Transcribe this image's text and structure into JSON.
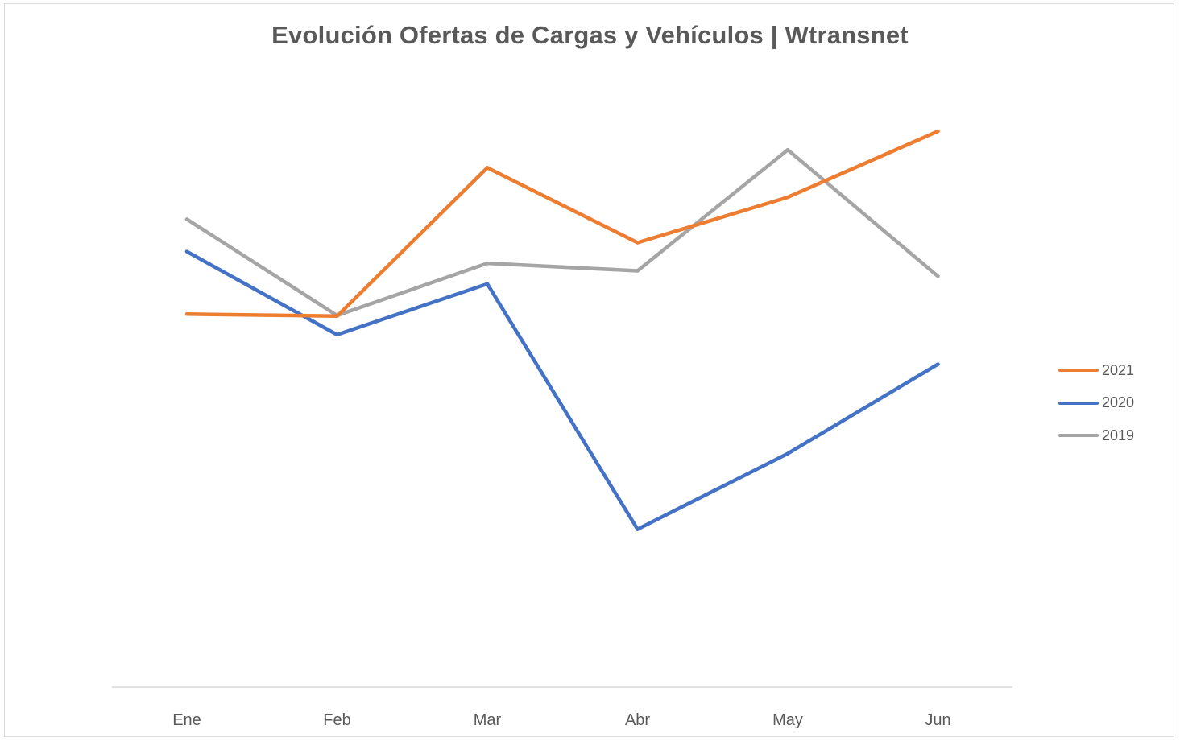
{
  "chart_data": {
    "type": "line",
    "title": "Evolución Ofertas de Cargas y Vehículos | Wtransnet",
    "xlabel": "",
    "ylabel": "",
    "categories": [
      "Ene",
      "Feb",
      "Mar",
      "Abr",
      "May",
      "Jun"
    ],
    "series": [
      {
        "name": "2021",
        "color": "#ED7D31",
        "values": [
          54.3,
          54.0,
          75.6,
          64.7,
          71.3,
          80.9
        ]
      },
      {
        "name": "2020",
        "color": "#4472C4",
        "values": [
          63.4,
          51.3,
          58.7,
          23.0,
          34.0,
          47.0
        ]
      },
      {
        "name": "2019",
        "color": "#A5A5A5",
        "values": [
          68.1,
          54.1,
          61.7,
          60.6,
          78.2,
          59.8
        ]
      }
    ],
    "ylim": [
      0,
      100
    ],
    "grid": false,
    "y_axis_visible": false,
    "legend_position": "right"
  }
}
